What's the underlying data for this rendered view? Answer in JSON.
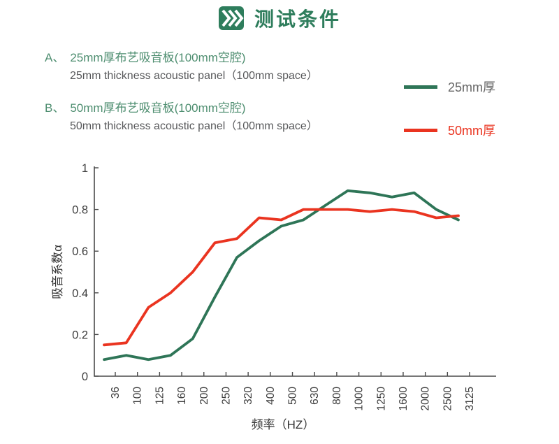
{
  "header": {
    "title": "测试条件",
    "accent_color": "#2e7d5c"
  },
  "conditions": [
    {
      "label": "A、",
      "zh": "25mm厚布艺吸音板(100mm空腔)",
      "en": "25mm thickness acoustic panel（100mm space）"
    },
    {
      "label": "B、",
      "zh": "50mm厚布艺吸音板(100mm空腔)",
      "en": "50mm thickness acoustic panel（100mm space）"
    }
  ],
  "legend": [
    {
      "label": "25mm厚",
      "color": "#2e7557",
      "label_color": "#666666"
    },
    {
      "label": "50mm厚",
      "color": "#ea3420",
      "label_color": "#ea3420"
    }
  ],
  "chart_data": {
    "type": "line",
    "title": "",
    "xlabel": "频率（HZ）",
    "ylabel": "吸音系数α",
    "categories": [
      "36",
      "100",
      "125",
      "160",
      "200",
      "250",
      "320",
      "400",
      "500",
      "630",
      "800",
      "1000",
      "1250",
      "1600",
      "2000",
      "2500",
      "3125"
    ],
    "yticks": [
      "0",
      "0.2",
      "0.4",
      "0.6",
      "0.8",
      "1"
    ],
    "ytick_values": [
      0,
      0.2,
      0.4,
      0.6,
      0.8,
      1
    ],
    "ylim": [
      0,
      1
    ],
    "grid": false,
    "legend_position": "top-right",
    "axis_color": "#4a4a4a",
    "tick_label_color": "#3c3c3c",
    "series": [
      {
        "name": "25mm厚",
        "color": "#2e7557",
        "values": [
          0.08,
          0.1,
          0.08,
          0.1,
          0.18,
          0.38,
          0.57,
          0.65,
          0.72,
          0.75,
          0.82,
          0.89,
          0.88,
          0.86,
          0.88,
          0.8,
          0.75
        ]
      },
      {
        "name": "50mm厚",
        "color": "#ea3420",
        "values": [
          0.15,
          0.16,
          0.33,
          0.4,
          0.5,
          0.64,
          0.66,
          0.76,
          0.75,
          0.8,
          0.8,
          0.8,
          0.79,
          0.8,
          0.79,
          0.76,
          0.77
        ]
      }
    ]
  }
}
